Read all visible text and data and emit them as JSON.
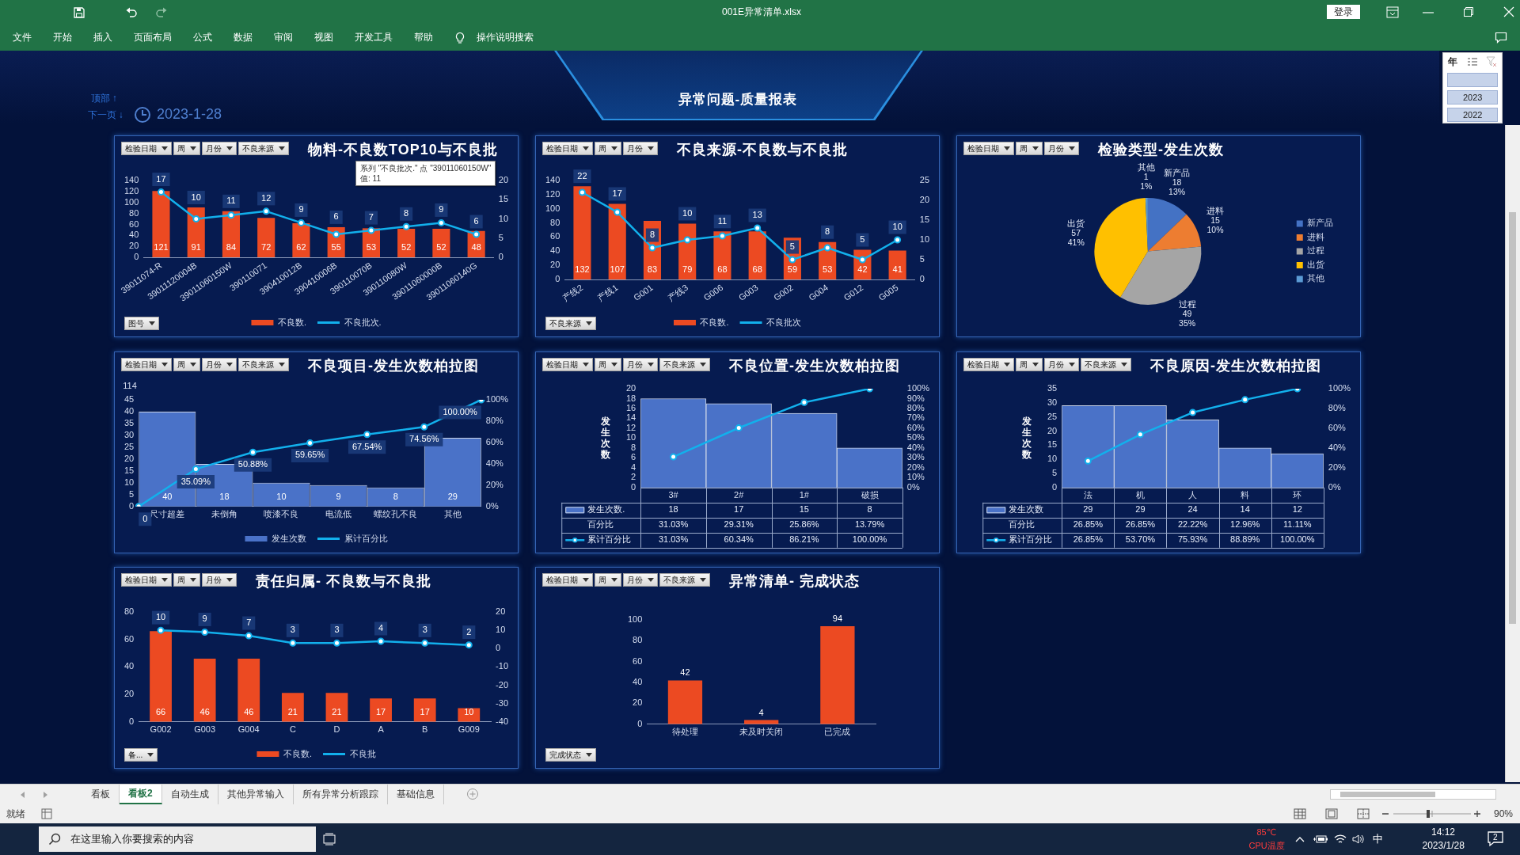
{
  "chart_data": [
    {
      "type": "other",
      "title": "001E异常清单.xlsx",
      "annotations": [
        "登录"
      ]
    },
    {
      "type": "other",
      "annotations": [
        "文件",
        "开始",
        "插入",
        "页面布局",
        "公式",
        "数据",
        "审阅",
        "视图",
        "开发工具",
        "帮助",
        "操作说明搜索"
      ]
    },
    {
      "type": "other",
      "title": "异常问题-质量报表",
      "annotations": [
        "顶部 ↑",
        "下一页 ↓",
        "2023-1-28"
      ]
    },
    {
      "type": "other",
      "title": "年",
      "annotations": [
        "2023",
        "2022"
      ]
    },
    {
      "type": "bar",
      "title": "物料-不良数TOP10与不良批",
      "annotations": [
        "检验日期",
        "周",
        "月份",
        "不良来源"
      ],
      "xlabel": "图号",
      "categories": [
        "39011074-R",
        "39011120004B",
        "39011060150W",
        "390110071",
        "390410012B",
        "390410006B",
        "390110070B",
        "390110080W",
        "39011060000B",
        "39011060140G"
      ],
      "series": [
        {
          "name": "不良数.",
          "color": "#ec4a22",
          "values": [
            121,
            91,
            84,
            72,
            62,
            55,
            53,
            52,
            52,
            48
          ]
        },
        {
          "name": "不良批次.",
          "type": "line",
          "axis": "y2",
          "color": "#12b0ec",
          "values": [
            17,
            10,
            11,
            12,
            9,
            6,
            7,
            8,
            9,
            6
          ]
        }
      ],
      "ylim": [
        0,
        140
      ],
      "yticks": [
        0,
        20,
        40,
        60,
        80,
        100,
        120,
        140
      ],
      "y2lim": [
        0,
        20
      ],
      "y2ticks": [
        0,
        5,
        10,
        15,
        20
      ],
      "legend": "bottom",
      "marker": "circle",
      "data_labels": true
    },
    {
      "type": "bar",
      "title": "不良来源-不良数与不良批",
      "annotations": [
        "检验日期",
        "周",
        "月份"
      ],
      "xlabel": "不良来源",
      "categories": [
        "产线2",
        "产线1",
        "G001",
        "产线3",
        "G006",
        "G003",
        "G002",
        "G004",
        "G012",
        "G005"
      ],
      "series": [
        {
          "name": "不良数.",
          "color": "#ec4a22",
          "values": [
            132,
            107,
            83,
            79,
            68,
            68,
            59,
            53,
            42,
            41
          ]
        },
        {
          "name": "不良批次",
          "type": "line",
          "axis": "y2",
          "color": "#12b0ec",
          "values": [
            22,
            17,
            8,
            10,
            11,
            13,
            5,
            8,
            5,
            10
          ]
        }
      ],
      "ylim": [
        0,
        140
      ],
      "yticks": [
        0,
        20,
        40,
        60,
        80,
        100,
        120,
        140
      ],
      "y2lim": [
        0,
        25
      ],
      "y2ticks": [
        0,
        5,
        10,
        15,
        20,
        25
      ],
      "legend": "bottom",
      "marker": "circle",
      "data_labels": true
    },
    {
      "type": "pie",
      "title": "检验类型-发生次数",
      "annotations": [
        "检验日期",
        "周",
        "月份"
      ],
      "categories": [
        "新产品",
        "进料",
        "过程",
        "出货",
        "其他"
      ],
      "values": [
        18,
        15,
        49,
        57,
        1
      ],
      "colors": [
        "#4472c4",
        "#ed7d31",
        "#a5a5a5",
        "#ffc000",
        "#5b9bd5"
      ],
      "value_labels": [
        "18\n13%",
        "15\n10%",
        "49\n35%",
        "57\n41%",
        "1\n1%"
      ],
      "legend": "right"
    },
    {
      "type": "bar",
      "title": "不良项目-发生次数柏拉图",
      "annotations": [
        "检验日期",
        "周",
        "月份",
        "不良来源"
      ],
      "ylabel": "114",
      "categories": [
        null,
        "尺寸超差",
        null,
        "未倒角",
        null,
        "喷漆不良",
        null,
        "电流低",
        null,
        "螺纹孔不良",
        null,
        "其他",
        null
      ],
      "series": [
        {
          "name": "发生次数",
          "color": "#4a72c8",
          "values": [
            null,
            40,
            null,
            18,
            null,
            10,
            null,
            9,
            null,
            8,
            null,
            29,
            null
          ],
          "value_labels": [
            null,
            "40",
            null,
            "18",
            null,
            "10",
            null,
            "9",
            null,
            "8",
            null,
            "29",
            null
          ]
        },
        {
          "name": "累计百分比",
          "type": "line",
          "axis": "y2",
          "color": "#12b0ec",
          "values": [
            0,
            null,
            35.09,
            null,
            50.88,
            null,
            59.65,
            null,
            67.54,
            null,
            74.56,
            null,
            100
          ],
          "value_labels": [
            "0",
            null,
            "35.09%",
            null,
            "50.88%",
            null,
            "59.65%",
            null,
            "67.54%",
            null,
            "74.56%",
            null,
            "100.00%"
          ]
        }
      ],
      "ylim": [
        0,
        45
      ],
      "yticks": [
        0,
        5,
        10,
        15,
        20,
        25,
        30,
        35,
        40,
        45
      ],
      "y2lim": [
        0,
        100
      ],
      "y2ticks": [
        {
          "value": 0,
          "label": "0%"
        },
        {
          "value": 20,
          "label": "20%"
        },
        {
          "value": 40,
          "label": "40%"
        },
        {
          "value": 60,
          "label": "60%"
        },
        {
          "value": 80,
          "label": "80%"
        },
        {
          "value": 100,
          "label": "100%"
        }
      ],
      "legend": "bottom",
      "marker": "circle"
    },
    {
      "type": "bar",
      "title": "不良位置-发生次数柏拉图",
      "annotations": [
        "检验日期",
        "周",
        "月份",
        "不良来源",
        "百分比",
        "31.03%",
        "29.31%",
        "25.86%",
        "13.79%"
      ],
      "ylabel": "发生次数",
      "categories": [
        "3#",
        "2#",
        "1#",
        "破损"
      ],
      "series": [
        {
          "name": "发生次数.",
          "color": "#4a72c8",
          "values": [
            18,
            17,
            15,
            8
          ],
          "value_labels": [
            "18",
            "17",
            "15",
            "8"
          ]
        },
        {
          "name": "累计百分比",
          "type": "line",
          "axis": "y2",
          "color": "#12b0ec",
          "values": [
            31.03,
            60.34,
            86.21,
            100
          ],
          "value_labels": [
            "31.03%",
            "60.34%",
            "86.21%",
            "100.00%"
          ]
        }
      ],
      "ylim": [
        0,
        20
      ],
      "yticks": [
        0,
        2,
        4,
        6,
        8,
        10,
        12,
        14,
        16,
        18,
        20
      ],
      "y2lim": [
        0,
        100
      ],
      "y2ticks": [
        {
          "value": 0,
          "label": "0%"
        },
        {
          "value": 10,
          "label": "10%"
        },
        {
          "value": 20,
          "label": "20%"
        },
        {
          "value": 30,
          "label": "30%"
        },
        {
          "value": 40,
          "label": "40%"
        },
        {
          "value": 50,
          "label": "50%"
        },
        {
          "value": 60,
          "label": "60%"
        },
        {
          "value": 70,
          "label": "70%"
        },
        {
          "value": 80,
          "label": "80%"
        },
        {
          "value": 90,
          "label": "90%"
        },
        {
          "value": 100,
          "label": "100%"
        }
      ],
      "legend": "bottom",
      "marker": "circle"
    },
    {
      "type": "bar",
      "title": "不良原因-发生次数柏拉图",
      "annotations": [
        "检验日期",
        "周",
        "月份",
        "不良来源",
        "百分比",
        "26.85%",
        "26.85%",
        "22.22%",
        "12.96%",
        "11.11%"
      ],
      "ylabel": "发生次数",
      "categories": [
        "法",
        "机",
        "人",
        "料",
        "环"
      ],
      "series": [
        {
          "name": "发生次数",
          "color": "#4a72c8",
          "values": [
            29,
            29,
            24,
            14,
            12
          ],
          "value_labels": [
            "29",
            "29",
            "24",
            "14",
            "12"
          ]
        },
        {
          "name": "累计百分比",
          "type": "line",
          "axis": "y2",
          "color": "#12b0ec",
          "values": [
            26.85,
            53.7,
            75.93,
            88.89,
            100
          ],
          "value_labels": [
            "26.85%",
            "53.70%",
            "75.93%",
            "88.89%",
            "100.00%"
          ]
        }
      ],
      "ylim": [
        0,
        35
      ],
      "yticks": [
        0,
        5,
        10,
        15,
        20,
        25,
        30,
        35
      ],
      "y2lim": [
        0,
        100
      ],
      "y2ticks": [
        {
          "value": 0,
          "label": "0%"
        },
        {
          "value": 20,
          "label": "20%"
        },
        {
          "value": 40,
          "label": "40%"
        },
        {
          "value": 60,
          "label": "60%"
        },
        {
          "value": 80,
          "label": "80%"
        },
        {
          "value": 100,
          "label": "100%"
        }
      ],
      "legend": "bottom",
      "marker": "circle"
    },
    {
      "type": "bar",
      "title": "责任归属- 不良数与不良批",
      "annotations": [
        "检验日期",
        "周",
        "月份"
      ],
      "xlabel": "备...",
      "categories": [
        "G002",
        "G003",
        "G004",
        "C",
        "D",
        "A",
        "B",
        "G009"
      ],
      "series": [
        {
          "name": "不良数.",
          "color": "#ec4a22",
          "values": [
            66,
            46,
            46,
            21,
            21,
            17,
            17,
            10
          ]
        },
        {
          "name": "不良批",
          "type": "line",
          "axis": "y2",
          "color": "#12b0ec",
          "values": [
            10,
            9,
            7,
            3,
            3,
            4,
            3,
            2
          ]
        }
      ],
      "ylim": [
        0,
        80
      ],
      "yticks": [
        0,
        20,
        40,
        60,
        80
      ],
      "y2lim": [
        -40,
        20
      ],
      "y2ticks": [
        -40,
        -30,
        -20,
        -10,
        0,
        10,
        20
      ],
      "legend": "bottom",
      "marker": "circle",
      "data_labels": true
    },
    {
      "type": "bar",
      "title": "异常清单- 完成状态",
      "annotations": [
        "检验日期",
        "周",
        "月份",
        "不良来源"
      ],
      "xlabel": "完成状态",
      "categories": [
        "待处理",
        "未及时关闭",
        "已完成"
      ],
      "values": [
        42,
        4,
        94
      ],
      "color": "#ec4a22",
      "ylim": [
        0,
        100
      ],
      "yticks": [
        0,
        20,
        40,
        60,
        80,
        100
      ],
      "data_labels": true
    },
    {
      "type": "other",
      "annotations": [
        "看板",
        "看板2",
        "自动生成",
        "其他异常输入",
        "所有异常分析跟踪",
        "基础信息"
      ]
    },
    {
      "type": "other",
      "annotations": [
        "就绪",
        "90%"
      ]
    },
    {
      "type": "other",
      "annotations": [
        "在这里输入你要搜索的内容",
        "85℃",
        "CPU温度",
        "中",
        "14:12",
        "2023/1/28",
        "2"
      ]
    },
    {
      "type": "other",
      "annotations": [
        "系列 \"不良批次.\" 点 \"39011060150W\"\n值: 11"
      ]
    }
  ]
}
